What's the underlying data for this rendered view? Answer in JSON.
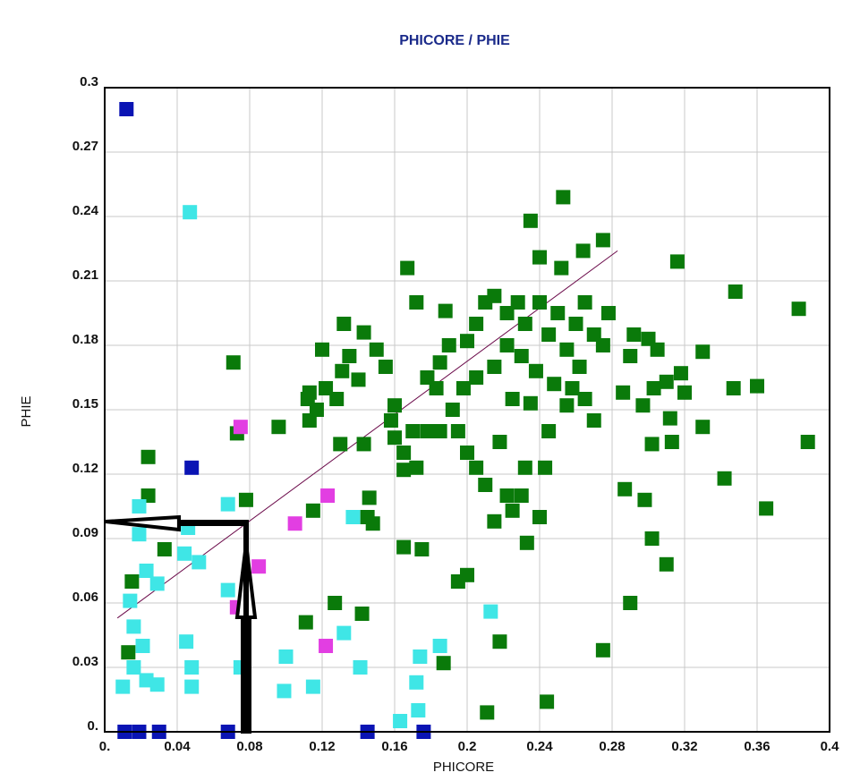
{
  "chart_data": {
    "type": "scatter",
    "title": "PHICORE / PHIE",
    "x_label": "PHICORE",
    "y_label": "PHIE",
    "xlim": [
      0,
      0.4
    ],
    "ylim": [
      0,
      0.3
    ],
    "xticks": [
      {
        "value": 0,
        "label": "0."
      },
      0.04,
      0.08,
      0.12,
      0.16,
      0.2,
      0.24,
      0.28,
      0.32,
      0.36,
      0.4
    ],
    "yticks": [
      {
        "value": 0,
        "label": "0."
      },
      0.03,
      0.06,
      0.09,
      0.12,
      0.15,
      0.18,
      0.21,
      0.24,
      0.27,
      0.3
    ],
    "grid": true,
    "trend_line": {
      "color": "#6b0a4a",
      "x": [
        0.007,
        0.283
      ],
      "y": [
        0.053,
        0.224
      ]
    },
    "series": [
      {
        "color": "#0a7a0a",
        "x": [
          0.013,
          0.015,
          0.024,
          0.024,
          0.033,
          0.071,
          0.073,
          0.078,
          0.096,
          0.111,
          0.115,
          0.127,
          0.142,
          0.145,
          0.146,
          0.148,
          0.165,
          0.175,
          0.187,
          0.195,
          0.2,
          0.211,
          0.218,
          0.244,
          0.275,
          0.29,
          0.31,
          0.302,
          0.298,
          0.287,
          0.365,
          0.342,
          0.33,
          0.313,
          0.302,
          0.388,
          0.383,
          0.348,
          0.316,
          0.33,
          0.36,
          0.347,
          0.31,
          0.318,
          0.32,
          0.312,
          0.305,
          0.3,
          0.292,
          0.297,
          0.303,
          0.286,
          0.29,
          0.27,
          0.253,
          0.235,
          0.24,
          0.252,
          0.264,
          0.275,
          0.167,
          0.172,
          0.188,
          0.143,
          0.15,
          0.135,
          0.131,
          0.12,
          0.113,
          0.117,
          0.122,
          0.112,
          0.128,
          0.14,
          0.155,
          0.16,
          0.158,
          0.17,
          0.178,
          0.183,
          0.185,
          0.19,
          0.2,
          0.205,
          0.21,
          0.215,
          0.222,
          0.228,
          0.232,
          0.24,
          0.245,
          0.25,
          0.255,
          0.26,
          0.265,
          0.27,
          0.275,
          0.278,
          0.262,
          0.258,
          0.248,
          0.238,
          0.23,
          0.222,
          0.215,
          0.205,
          0.198,
          0.192,
          0.185,
          0.178,
          0.195,
          0.2,
          0.205,
          0.21,
          0.215,
          0.222,
          0.225,
          0.23,
          0.233,
          0.24,
          0.243,
          0.232,
          0.218,
          0.225,
          0.235,
          0.245,
          0.255,
          0.265,
          0.165,
          0.172,
          0.165,
          0.16,
          0.13,
          0.143,
          0.113,
          0.132
        ],
        "y": [
          0.037,
          0.07,
          0.128,
          0.11,
          0.085,
          0.172,
          0.139,
          0.108,
          0.142,
          0.051,
          0.103,
          0.06,
          0.055,
          0.1,
          0.109,
          0.097,
          0.086,
          0.085,
          0.032,
          0.07,
          0.073,
          0.009,
          0.042,
          0.014,
          0.038,
          0.06,
          0.078,
          0.09,
          0.108,
          0.113,
          0.104,
          0.118,
          0.142,
          0.135,
          0.134,
          0.135,
          0.197,
          0.205,
          0.219,
          0.177,
          0.161,
          0.16,
          0.163,
          0.167,
          0.158,
          0.146,
          0.178,
          0.183,
          0.185,
          0.152,
          0.16,
          0.158,
          0.175,
          0.145,
          0.249,
          0.238,
          0.221,
          0.216,
          0.224,
          0.229,
          0.216,
          0.2,
          0.196,
          0.186,
          0.178,
          0.175,
          0.168,
          0.178,
          0.158,
          0.15,
          0.16,
          0.155,
          0.155,
          0.164,
          0.17,
          0.152,
          0.145,
          0.14,
          0.165,
          0.16,
          0.172,
          0.18,
          0.182,
          0.19,
          0.2,
          0.203,
          0.195,
          0.2,
          0.19,
          0.2,
          0.185,
          0.195,
          0.178,
          0.19,
          0.2,
          0.185,
          0.18,
          0.195,
          0.17,
          0.16,
          0.162,
          0.168,
          0.175,
          0.18,
          0.17,
          0.165,
          0.16,
          0.15,
          0.14,
          0.14,
          0.14,
          0.13,
          0.123,
          0.115,
          0.098,
          0.11,
          0.103,
          0.11,
          0.088,
          0.1,
          0.123,
          0.123,
          0.135,
          0.155,
          0.153,
          0.14,
          0.152,
          0.155,
          0.13,
          0.123,
          0.122,
          0.137,
          0.134,
          0.134,
          0.145,
          0.19
        ]
      },
      {
        "color": "#3fe6e6",
        "x": [
          0.047,
          0.019,
          0.068,
          0.019,
          0.046,
          0.023,
          0.029,
          0.044,
          0.052,
          0.014,
          0.068,
          0.016,
          0.021,
          0.016,
          0.023,
          0.029,
          0.01,
          0.045,
          0.048,
          0.048,
          0.075,
          0.1,
          0.099,
          0.115,
          0.132,
          0.141,
          0.137,
          0.172,
          0.173,
          0.163,
          0.185,
          0.213,
          0.174
        ],
        "y": [
          0.242,
          0.105,
          0.106,
          0.092,
          0.095,
          0.075,
          0.069,
          0.083,
          0.079,
          0.061,
          0.066,
          0.049,
          0.04,
          0.03,
          0.024,
          0.022,
          0.021,
          0.042,
          0.03,
          0.021,
          0.03,
          0.035,
          0.019,
          0.021,
          0.046,
          0.03,
          0.1,
          0.023,
          0.01,
          0.005,
          0.04,
          0.056,
          0.035
        ]
      },
      {
        "color": "#e23ee2",
        "x": [
          0.075,
          0.123,
          0.105,
          0.085,
          0.073,
          0.122
        ],
        "y": [
          0.142,
          0.11,
          0.097,
          0.077,
          0.058,
          0.04
        ]
      },
      {
        "color": "#0a14b4",
        "x": [
          0.012,
          0.048,
          0.011,
          0.019,
          0.03,
          0.068,
          0.145,
          0.176
        ],
        "y": [
          0.29,
          0.123,
          0,
          0,
          0,
          0,
          0,
          0
        ]
      }
    ]
  }
}
